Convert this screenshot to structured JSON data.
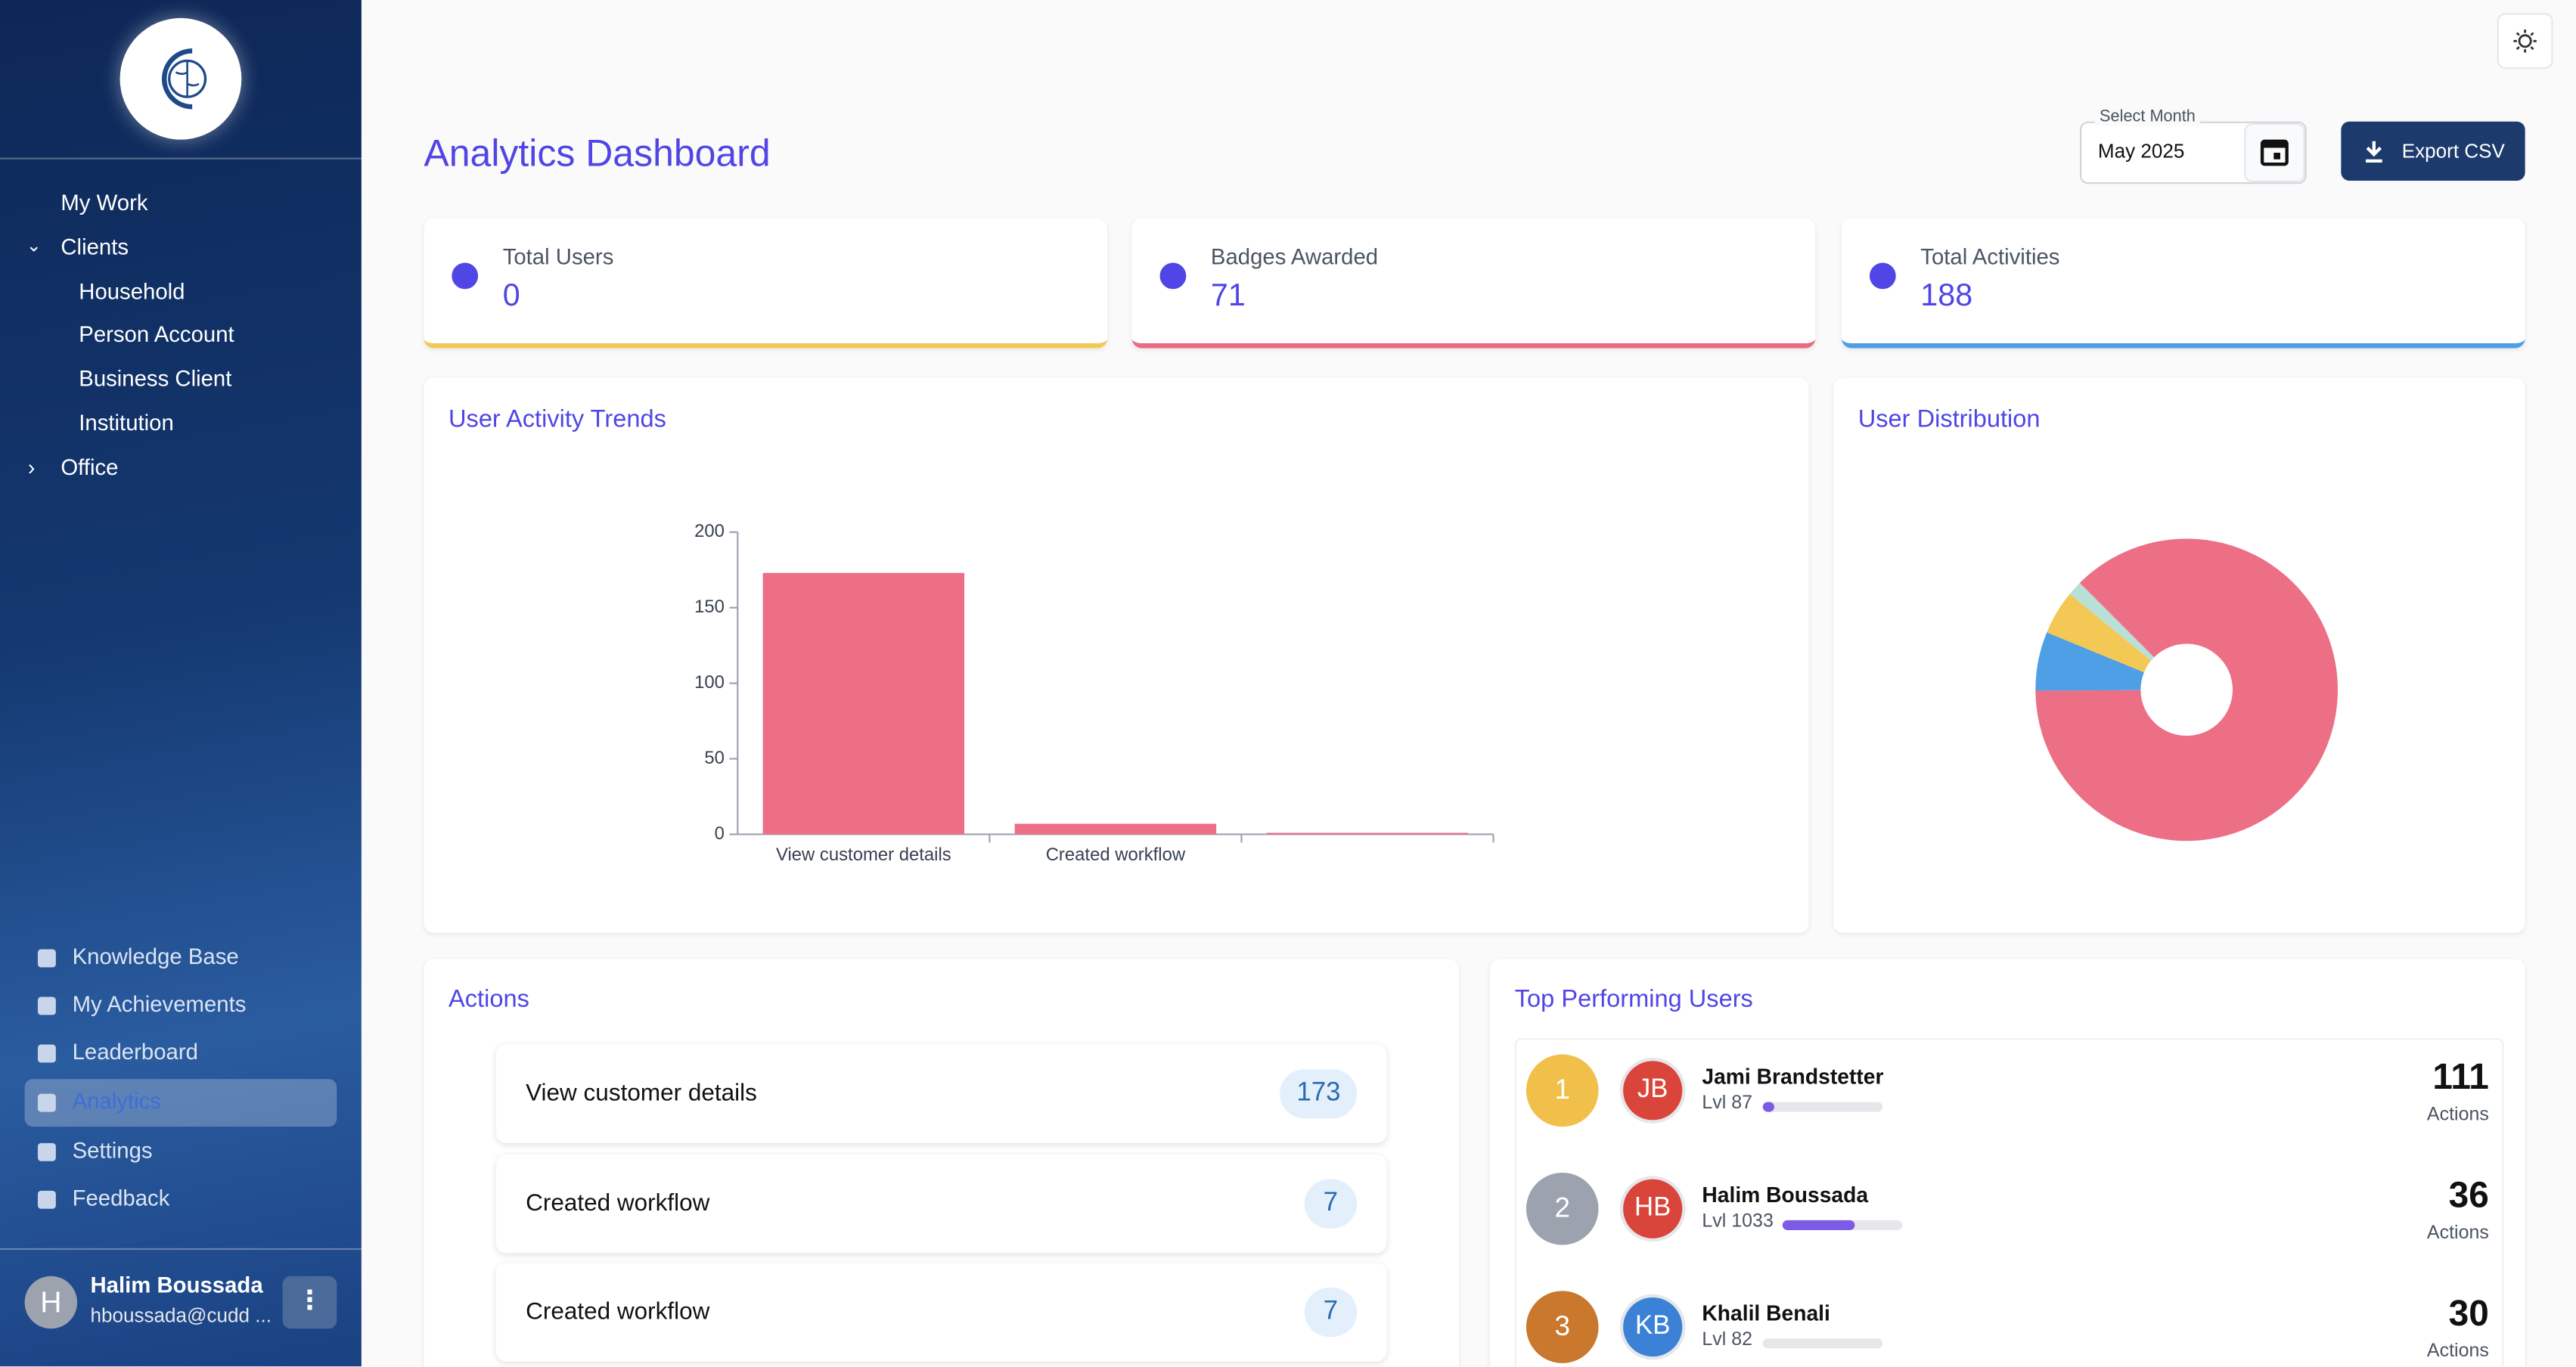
{
  "sidebar": {
    "nav": [
      "My Work",
      "Clients",
      "Household",
      "Person Account",
      "Business Client",
      "Institution",
      "Office"
    ],
    "bottom_nav": [
      "Knowledge Base",
      "My Achievements",
      "Leaderboard",
      "Analytics",
      "Settings",
      "Feedback"
    ],
    "user": {
      "initial": "H",
      "name": "Halim Boussada",
      "email": "hboussada@cudd ..."
    }
  },
  "header": {
    "title": "Analytics Dashboard",
    "month_label": "Select Month",
    "month_value": "May 2025",
    "export_button": "Export CSV"
  },
  "stats": [
    {
      "label": "Total Users",
      "value": 0,
      "color": "#f3c854"
    },
    {
      "label": "Badges Awarded",
      "value": 71,
      "color": "#ec6b83"
    },
    {
      "label": "Total Activities",
      "value": 188,
      "color": "#4e9fe5"
    }
  ],
  "chart_data": [
    {
      "type": "bar",
      "title": "User Activity Trends",
      "categories": [
        "View customer details",
        "Created workflow",
        null
      ],
      "values": [
        173,
        7,
        1
      ],
      "color": "#ec6f86",
      "ylim": [
        0,
        200
      ],
      "yticks": [
        0,
        50,
        100,
        150,
        200
      ]
    },
    {
      "type": "pie",
      "title": "User Distribution",
      "values": [
        111,
        8,
        6,
        2
      ],
      "colors": [
        "#ec6f86",
        "#4e9fe5",
        "#f3c854",
        "#b8e0d6"
      ]
    }
  ],
  "actions": {
    "title": "Actions",
    "items": [
      {
        "name": "View customer details",
        "count": 173
      },
      {
        "name": "Created workflow",
        "count": 7
      },
      {
        "name": "Created workflow",
        "count": 7
      }
    ]
  },
  "top_users": {
    "title": "Top Performing Users",
    "unit": "Actions",
    "users": [
      {
        "rank": 1,
        "initials": "JB",
        "name": "Jami Brandstetter",
        "level": "Lvl 87",
        "progress": 10,
        "actions": 111
      },
      {
        "rank": 2,
        "initials": "HB",
        "name": "Halim Boussada",
        "level": "Lvl 1033",
        "progress": 60,
        "actions": 36
      },
      {
        "rank": 3,
        "initials": "KB",
        "name": "Khalil Benali",
        "level": "Lvl 82",
        "progress": 0,
        "actions": 30
      }
    ]
  }
}
